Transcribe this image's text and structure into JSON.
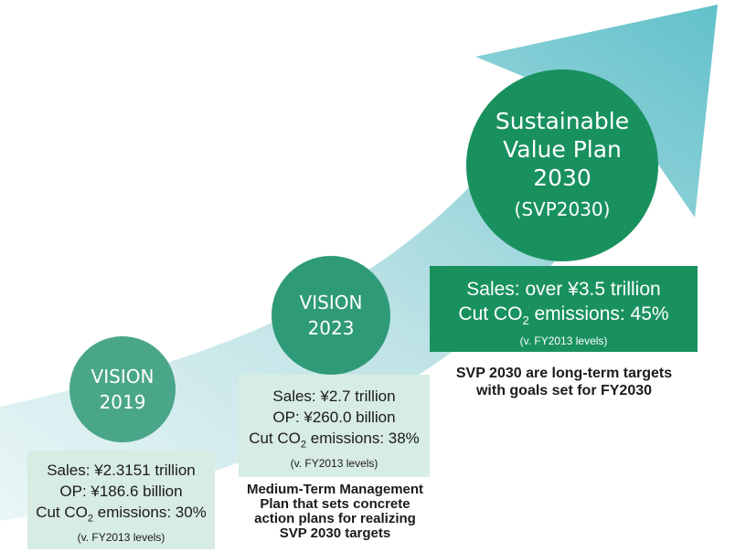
{
  "colors": {
    "arrow_light": "#d8eff1",
    "arrow_dark": "#6cc3cc",
    "circle_2019": "#4aa689",
    "circle_2023": "#2f9a78",
    "circle_svp": "#19915f",
    "box_light": "#d7ece2",
    "box_dark": "#19915f"
  },
  "vision2019": {
    "title_line1": "VISION",
    "title_line2": "2019",
    "sales": "Sales: ¥2.3151 trillion",
    "op": "OP: ¥186.6 billion",
    "co2_prefix": "Cut CO",
    "co2_sub": "2",
    "co2_suffix": " emissions: 30%",
    "note": "(v. FY2013 levels)"
  },
  "vision2023": {
    "title_line1": "VISION",
    "title_line2": "2023",
    "sales": "Sales: ¥2.7 trillion",
    "op": "OP: ¥260.0 billion",
    "co2_prefix": "Cut CO",
    "co2_sub": "2",
    "co2_suffix": " emissions: 38%",
    "note": "(v. FY2013 levels)",
    "caption": [
      "Medium-Term Management",
      "Plan that sets concrete",
      "action plans for realizing",
      "SVP 2030 targets"
    ]
  },
  "svp2030": {
    "title_line1": "Sustainable",
    "title_line2": "Value Plan",
    "title_line3": "2030",
    "title_line4": "(SVP2030)",
    "sales": "Sales: over ¥3.5 trillion",
    "co2_prefix": "Cut CO",
    "co2_sub": "2",
    "co2_suffix": " emissions: 45%",
    "note": "(v. FY2013 levels)",
    "caption": [
      "SVP 2030 are long-term targets",
      "with goals set for FY2030"
    ]
  }
}
